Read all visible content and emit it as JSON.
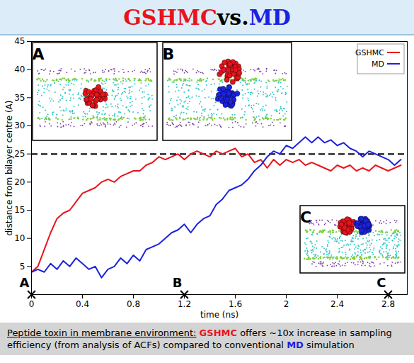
{
  "chart_data": {
    "type": "line",
    "title": "GSHMC vs. MD",
    "x_label": "time (ns)",
    "y_label": "distance from bilayer centre (A)",
    "x": [
      0,
      0.05,
      0.1,
      0.15,
      0.2,
      0.25,
      0.3,
      0.35,
      0.4,
      0.45,
      0.5,
      0.55,
      0.6,
      0.65,
      0.7,
      0.75,
      0.8,
      0.85,
      0.9,
      0.95,
      1,
      1.05,
      1.1,
      1.15,
      1.2,
      1.25,
      1.3,
      1.35,
      1.4,
      1.45,
      1.5,
      1.55,
      1.6,
      1.65,
      1.7,
      1.75,
      1.8,
      1.85,
      1.9,
      1.95,
      2,
      2.05,
      2.1,
      2.15,
      2.2,
      2.25,
      2.3,
      2.35,
      2.4,
      2.45,
      2.5,
      2.55,
      2.6,
      2.65,
      2.7,
      2.75,
      2.8,
      2.85,
      2.9
    ],
    "series": [
      {
        "name": "GSHMC",
        "color": "#e8141c",
        "values": [
          4,
          5,
          8,
          11,
          13.5,
          14.5,
          15,
          16.5,
          18,
          18.5,
          19,
          20,
          20.5,
          20,
          21,
          21.5,
          22,
          22,
          23,
          23.5,
          24.5,
          24,
          24.5,
          25,
          24,
          25,
          25.5,
          25,
          24.5,
          25.5,
          25,
          25.5,
          26,
          24.5,
          25,
          23.5,
          24,
          22.5,
          24,
          23,
          24,
          23.5,
          24,
          23,
          23.5,
          23,
          22.5,
          22,
          23,
          22.5,
          23,
          22,
          22.5,
          22,
          23,
          22.5,
          22,
          22.5,
          23
        ]
      },
      {
        "name": "MD",
        "color": "#1c22e0",
        "values": [
          4,
          4.5,
          4,
          5.5,
          4.5,
          6,
          5,
          6.5,
          5.5,
          4.5,
          5,
          3,
          4.5,
          5,
          6.5,
          5.5,
          7,
          6,
          8,
          8.5,
          9,
          10,
          11,
          11.5,
          12.5,
          11,
          12.5,
          13.5,
          14,
          16,
          17,
          18.5,
          19,
          19.5,
          20.5,
          22,
          23,
          24.5,
          25.5,
          25,
          26.5,
          26,
          27,
          28,
          27,
          28,
          27,
          27.5,
          26.5,
          27,
          26,
          25.5,
          24.5,
          25.5,
          25,
          24.5,
          24,
          23,
          24
        ]
      }
    ],
    "xlim": [
      0,
      2.95
    ],
    "ylim": [
      0,
      45
    ],
    "xticks": [
      0,
      0.4,
      0.8,
      1.2,
      1.6,
      2,
      2.4,
      2.8
    ],
    "yticks": [
      5,
      10,
      15,
      20,
      25,
      30,
      35,
      40,
      45
    ],
    "grid": false,
    "legend": "top-right",
    "reference_lines": [
      {
        "y": 25,
        "line_style": "dashed"
      }
    ],
    "markers": [
      {
        "x": 0,
        "label": "A"
      },
      {
        "x": 1.2,
        "label": "B"
      },
      {
        "x": 2.8,
        "label": "C"
      }
    ],
    "insets": [
      {
        "label": "A"
      },
      {
        "label": "B"
      },
      {
        "label": "C"
      }
    ],
    "caption": "Peptide toxin in membrane environment: GSHMC offers ~10x increase in sampling efficiency (from analysis of ACFs) compared to conventional MD simulation"
  }
}
